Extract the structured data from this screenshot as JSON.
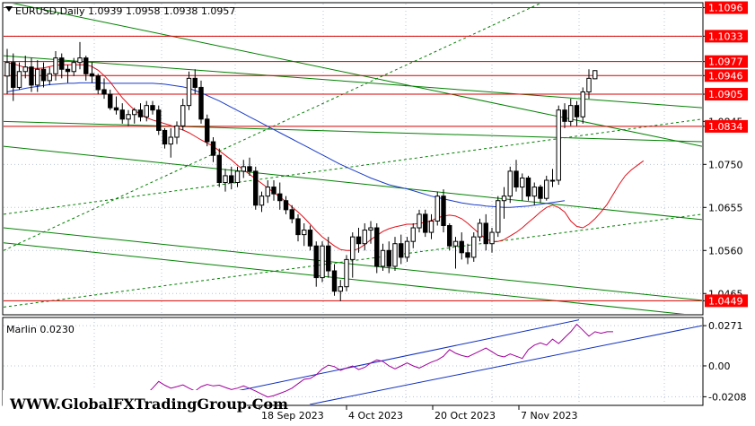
{
  "header": {
    "symbol_line": "EURUSD,Daily  1.0939 1.0958 1.0938 1.0957"
  },
  "indicator": {
    "label": "Marlin 0.0230"
  },
  "watermark": "WWW.GlobalFXTradingGroup.Com",
  "colors": {
    "level_line": "#d60000",
    "level_box": "#ff0000",
    "green_channel": "#008000",
    "ma_red": "#e0101a",
    "ma_blue": "#1a3cc8",
    "candle": "#000000",
    "oscillator": "#a0009a",
    "osc_channel": "#1030c0",
    "grid": "#b8c4d8"
  },
  "chart_data": {
    "type": "candlestick",
    "symbol": "EURUSD",
    "timeframe": "Daily",
    "ylim": [
      1.042,
      1.1105
    ],
    "price_ticks": [
      1.1096,
      1.1033,
      1.0977,
      1.0946,
      1.0905,
      1.0845,
      1.0834,
      1.075,
      1.0655,
      1.056,
      1.0465,
      1.0449
    ],
    "levels": [
      1.1096,
      1.1033,
      1.0977,
      1.0946,
      1.0905,
      1.0834,
      1.0449
    ],
    "x_tick_labels": [
      "18 Sep 2023",
      "4 Oct 2023",
      "20 Oct 2023",
      "7 Nov 2023"
    ],
    "candles": [
      [
        1.0945,
        1.1005,
        1.0905,
        1.0975
      ],
      [
        1.0975,
        1.0995,
        1.089,
        1.092
      ],
      [
        1.092,
        1.0975,
        1.0915,
        1.0955
      ],
      [
        1.0955,
        1.099,
        1.094,
        1.0965
      ],
      [
        1.0965,
        1.0985,
        1.091,
        1.0925
      ],
      [
        1.0925,
        1.098,
        1.091,
        1.096
      ],
      [
        1.096,
        1.0975,
        1.092,
        1.0935
      ],
      [
        1.0935,
        1.0965,
        1.0925,
        1.095
      ],
      [
        1.095,
        1.1,
        1.0935,
        1.0985
      ],
      [
        1.0985,
        1.0995,
        1.094,
        1.096
      ],
      [
        1.096,
        1.097,
        1.093,
        1.0955
      ],
      [
        1.0955,
        1.0985,
        1.0945,
        1.0975
      ],
      [
        1.0975,
        1.102,
        1.096,
        1.0985
      ],
      [
        1.0985,
        1.099,
        1.0935,
        1.095
      ],
      [
        1.095,
        1.0975,
        1.093,
        1.0945
      ],
      [
        1.0945,
        1.095,
        1.0905,
        1.0915
      ],
      [
        1.0915,
        1.094,
        1.0895,
        1.0905
      ],
      [
        1.0905,
        1.0915,
        1.087,
        1.0875
      ],
      [
        1.0875,
        1.09,
        1.086,
        1.087
      ],
      [
        1.087,
        1.0885,
        1.084,
        1.085
      ],
      [
        1.085,
        1.087,
        1.0835,
        1.086
      ],
      [
        1.086,
        1.0875,
        1.084,
        1.087
      ],
      [
        1.087,
        1.0885,
        1.0845,
        1.0855
      ],
      [
        1.0855,
        1.089,
        1.0845,
        1.088
      ],
      [
        1.088,
        1.089,
        1.086,
        1.087
      ],
      [
        1.087,
        1.088,
        1.0815,
        1.0825
      ],
      [
        1.0825,
        1.083,
        1.0785,
        1.0795
      ],
      [
        1.0795,
        1.083,
        1.0765,
        1.081
      ],
      [
        1.081,
        1.0845,
        1.0795,
        1.0835
      ],
      [
        1.0835,
        1.0895,
        1.0825,
        1.088
      ],
      [
        1.088,
        1.0955,
        1.087,
        1.094
      ],
      [
        1.094,
        1.096,
        1.0905,
        1.092
      ],
      [
        1.092,
        1.0935,
        1.084,
        1.085
      ],
      [
        1.085,
        1.086,
        1.079,
        1.08
      ],
      [
        1.08,
        1.081,
        1.0755,
        1.077
      ],
      [
        1.077,
        1.0785,
        1.07,
        1.071
      ],
      [
        1.071,
        1.074,
        1.069,
        1.0725
      ],
      [
        1.0725,
        1.0745,
        1.0695,
        1.071
      ],
      [
        1.071,
        1.0745,
        1.07,
        1.0735
      ],
      [
        1.0735,
        1.076,
        1.072,
        1.0745
      ],
      [
        1.0745,
        1.0765,
        1.0725,
        1.0735
      ],
      [
        1.0735,
        1.0745,
        1.065,
        1.066
      ],
      [
        1.066,
        1.069,
        1.0645,
        1.068
      ],
      [
        1.068,
        1.0715,
        1.0665,
        1.07
      ],
      [
        1.07,
        1.0715,
        1.067,
        1.0685
      ],
      [
        1.0685,
        1.071,
        1.065,
        1.067
      ],
      [
        1.067,
        1.068,
        1.064,
        1.065
      ],
      [
        1.065,
        1.066,
        1.062,
        1.063
      ],
      [
        1.063,
        1.064,
        1.058,
        1.0595
      ],
      [
        1.0595,
        1.062,
        1.057,
        1.0605
      ],
      [
        1.0605,
        1.0615,
        1.056,
        1.057
      ],
      [
        1.057,
        1.058,
        1.048,
        1.05
      ],
      [
        1.05,
        1.058,
        1.049,
        1.057
      ],
      [
        1.057,
        1.059,
        1.05,
        1.0515
      ],
      [
        1.0515,
        1.053,
        1.046,
        1.047
      ],
      [
        1.047,
        1.0495,
        1.0448,
        1.048
      ],
      [
        1.048,
        1.055,
        1.047,
        1.054
      ],
      [
        1.054,
        1.06,
        1.05,
        1.059
      ],
      [
        1.059,
        1.061,
        1.0555,
        1.0575
      ],
      [
        1.0575,
        1.062,
        1.056,
        1.0605
      ],
      [
        1.0605,
        1.0625,
        1.0575,
        1.061
      ],
      [
        1.061,
        1.062,
        1.051,
        1.0525
      ],
      [
        1.0525,
        1.0575,
        1.0515,
        1.056
      ],
      [
        1.056,
        1.058,
        1.051,
        1.0525
      ],
      [
        1.0525,
        1.059,
        1.0515,
        1.0575
      ],
      [
        1.0575,
        1.0595,
        1.053,
        1.0545
      ],
      [
        1.0545,
        1.059,
        1.0535,
        1.058
      ],
      [
        1.058,
        1.062,
        1.0565,
        1.061
      ],
      [
        1.061,
        1.065,
        1.06,
        1.064
      ],
      [
        1.064,
        1.065,
        1.059,
        1.06
      ],
      [
        1.06,
        1.064,
        1.0585,
        1.0625
      ],
      [
        1.0625,
        1.069,
        1.0615,
        1.068
      ],
      [
        1.068,
        1.0695,
        1.06,
        1.0615
      ],
      [
        1.0615,
        1.062,
        1.056,
        1.057
      ],
      [
        1.057,
        1.059,
        1.052,
        1.058
      ],
      [
        1.058,
        1.06,
        1.054,
        1.0555
      ],
      [
        1.0555,
        1.0575,
        1.053,
        1.0545
      ],
      [
        1.0545,
        1.06,
        1.0535,
        1.059
      ],
      [
        1.059,
        1.063,
        1.058,
        1.062
      ],
      [
        1.062,
        1.064,
        1.056,
        1.0575
      ],
      [
        1.0575,
        1.061,
        1.0555,
        1.06
      ],
      [
        1.06,
        1.068,
        1.059,
        1.067
      ],
      [
        1.067,
        1.07,
        1.063,
        1.068
      ],
      [
        1.068,
        1.0745,
        1.0665,
        1.0735
      ],
      [
        1.0735,
        1.076,
        1.069,
        1.07
      ],
      [
        1.07,
        1.073,
        1.067,
        1.072
      ],
      [
        1.072,
        1.0725,
        1.067,
        1.068
      ],
      [
        1.068,
        1.071,
        1.066,
        1.07
      ],
      [
        1.07,
        1.0705,
        1.0665,
        1.0675
      ],
      [
        1.0675,
        1.0725,
        1.067,
        1.0715
      ],
      [
        1.0715,
        1.074,
        1.07,
        1.0715
      ],
      [
        1.0715,
        1.088,
        1.0705,
        1.087
      ],
      [
        1.087,
        1.0885,
        1.083,
        1.0845
      ],
      [
        1.0845,
        1.0895,
        1.0835,
        1.088
      ],
      [
        1.088,
        1.089,
        1.0835,
        1.0855
      ],
      [
        1.0855,
        1.092,
        1.084,
        1.091
      ],
      [
        1.091,
        1.096,
        1.0895,
        1.094
      ],
      [
        1.0939,
        1.0958,
        1.0938,
        1.0957
      ]
    ],
    "ma_red": [
      1.0975,
      1.0972,
      1.0968,
      1.0964,
      1.0962,
      1.0962,
      1.0963,
      1.0966,
      1.0969,
      1.097,
      1.097,
      1.097,
      1.097,
      1.097,
      1.0966,
      1.0958,
      1.0946,
      1.0932,
      1.0914,
      1.0897,
      1.0883,
      1.087,
      1.086,
      1.0853,
      1.0848,
      1.0844,
      1.084,
      1.0836,
      1.083,
      1.0826,
      1.082,
      1.0812,
      1.0804,
      1.0797,
      1.079,
      1.078,
      1.077,
      1.076,
      1.0748,
      1.0738,
      1.0728,
      1.0718,
      1.0708,
      1.0698,
      1.0688,
      1.0678,
      1.0668,
      1.0656,
      1.0645,
      1.0632,
      1.0618,
      1.0603,
      1.059,
      1.058,
      1.057,
      1.0562,
      1.056,
      1.056,
      1.0564,
      1.0573,
      1.0584,
      1.0593,
      1.0602,
      1.0608,
      1.0612,
      1.0615,
      1.0618,
      1.0618,
      1.062,
      1.0622,
      1.0626,
      1.0632,
      1.0636,
      1.0638,
      1.0636,
      1.063,
      1.062,
      1.0608,
      1.0596,
      1.0586,
      1.058,
      1.058,
      1.0584,
      1.0592,
      1.06,
      1.061,
      1.0622,
      1.0633,
      1.0645,
      1.0655,
      1.066,
      1.0655,
      1.0645,
      1.0625,
      1.0613,
      1.061,
      1.0618,
      1.063,
      1.0645,
      1.0662,
      1.0684,
      1.0706,
      1.0725,
      1.0738,
      1.0748,
      1.0758
    ],
    "ma_blue": [
      1.091,
      1.0913,
      1.0915,
      1.0918,
      1.092,
      1.0922,
      1.0924,
      1.0926,
      1.0927,
      1.0928,
      1.0929,
      1.0929,
      1.093,
      1.093,
      1.093,
      1.093,
      1.0929,
      1.0929,
      1.0929,
      1.0929,
      1.0929,
      1.0929,
      1.0929,
      1.0929,
      1.0929,
      1.0928,
      1.0927,
      1.0925,
      1.0923,
      1.0921,
      1.0918,
      1.0913,
      1.0908,
      1.0902,
      1.0896,
      1.089,
      1.0883,
      1.0876,
      1.0869,
      1.0862,
      1.0855,
      1.0848,
      1.0841,
      1.0834,
      1.0827,
      1.082,
      1.0813,
      1.0806,
      1.0799,
      1.0792,
      1.0785,
      1.0778,
      1.0771,
      1.0764,
      1.0757,
      1.075,
      1.0744,
      1.0738,
      1.0732,
      1.0726,
      1.072,
      1.0715,
      1.071,
      1.0705,
      1.0702,
      1.0699,
      1.0696,
      1.0692,
      1.0688,
      1.0684,
      1.068,
      1.0677,
      1.0674,
      1.0671,
      1.0668,
      1.0665,
      1.0663,
      1.0661,
      1.066,
      1.0658,
      1.0657,
      1.0656,
      1.0655,
      1.0655,
      1.0656,
      1.0657,
      1.0658,
      1.066,
      1.0662,
      1.0664,
      1.0666,
      1.0668,
      1.067
    ],
    "green_channel": [
      [
        1.111,
        1.079
      ],
      [
        1.099,
        1.0875
      ],
      [
        1.0845,
        1.08
      ],
      [
        1.079,
        1.0628
      ],
      [
        1.061,
        1.045
      ],
      [
        1.0577,
        1.0415
      ]
    ],
    "green_dashed": [
      [
        1.064,
        1.085
      ],
      [
        1.056,
        1.127
      ],
      [
        1.0435,
        1.064
      ]
    ],
    "oscillator": {
      "ylim": [
        -0.026,
        0.032
      ],
      "ticks": [
        0.0271,
        0.0,
        -0.0208
      ],
      "values": [
        -0.025,
        -0.0235,
        -0.0248,
        -0.0255,
        -0.0238,
        -0.0225,
        -0.0242,
        -0.025,
        -0.023,
        -0.0215,
        -0.023,
        -0.024,
        -0.0225,
        -0.021,
        -0.0222,
        -0.0232,
        -0.0218,
        -0.0205,
        -0.0198,
        -0.0195,
        -0.021,
        -0.022,
        -0.0205,
        -0.019,
        -0.015,
        -0.0105,
        -0.013,
        -0.015,
        -0.014,
        -0.0128,
        -0.015,
        -0.017,
        -0.014,
        -0.0125,
        -0.0135,
        -0.013,
        -0.0145,
        -0.016,
        -0.015,
        -0.0135,
        -0.0152,
        -0.017,
        -0.019,
        -0.021,
        -0.02,
        -0.0185,
        -0.017,
        -0.015,
        -0.012,
        -0.009,
        -0.0085,
        -0.006,
        -0.002,
        0.0005,
        -0.0005,
        -0.003,
        -0.0015,
        0.0,
        -0.0025,
        -0.001,
        0.002,
        0.004,
        0.003,
        0.0,
        -0.002,
        0.0,
        0.002,
        0.0,
        -0.0015,
        0.0005,
        0.0025,
        0.004,
        0.0065,
        0.011,
        0.0085,
        0.007,
        0.006,
        0.008,
        0.01,
        0.012,
        0.0095,
        0.007,
        0.006,
        0.008,
        0.0065,
        0.005,
        0.011,
        0.014,
        0.0155,
        0.014,
        0.018,
        0.015,
        0.019,
        0.023,
        0.028,
        0.024,
        0.02,
        0.023,
        0.022,
        0.023,
        0.023
      ],
      "channel_upper": [
        [
          -0.018,
          0.031
        ]
      ],
      "channel_lower": [
        [
          -0.026,
          0.0271
        ]
      ]
    }
  }
}
